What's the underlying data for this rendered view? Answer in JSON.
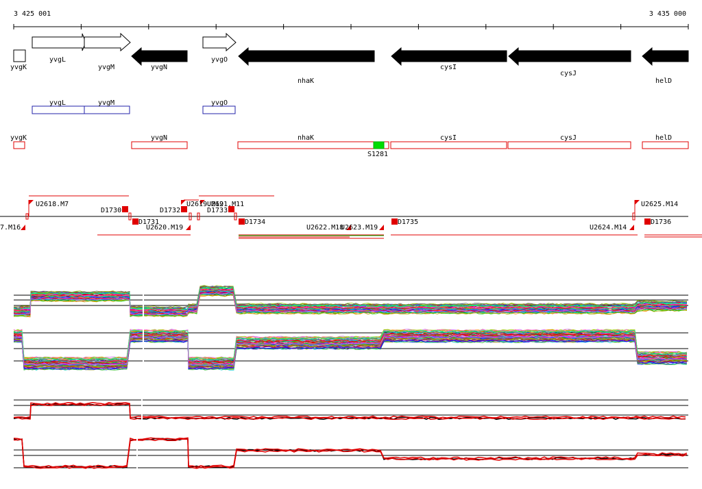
{
  "ruler": {
    "start_label": "3 425 001",
    "end_label": "3 435 000"
  },
  "genes": [
    {
      "name": "yvgK",
      "strand": "none"
    },
    {
      "name": "yvgL",
      "strand": "+"
    },
    {
      "name": "yvgM",
      "strand": "+"
    },
    {
      "name": "yvgN",
      "strand": "-"
    },
    {
      "name": "yvgO",
      "strand": "+"
    },
    {
      "name": "nhaK",
      "strand": "-"
    },
    {
      "name": "cysI",
      "strand": "-"
    },
    {
      "name": "cysJ",
      "strand": "-"
    },
    {
      "name": "helD",
      "strand": "-"
    }
  ],
  "plus_operon_genes": [
    "yvgL",
    "yvgM",
    "yvgO"
  ],
  "minus_operon_genes": [
    "yvgK",
    "yvgN",
    "nhaK",
    "cysI",
    "cysJ",
    "helD"
  ],
  "sites": [
    {
      "name": "S1281",
      "color": "#00dd00"
    }
  ],
  "tu_labels": {
    "u2618": "U2618.M7",
    "d1730": "D1730",
    "d1731": "D1731",
    "d1732": "D1732",
    "u2620": "U2620.M19",
    "u2619": "U2619.M19",
    "u2621": "U2621.M11",
    "d1733": "D1733",
    "d1734": "D1734",
    "u2622": "U2622.M18",
    "u2623": "U2623.M19",
    "d1735": "D1735",
    "u2624": "U2624.M14",
    "u2625": "U2625.M14",
    "d1736": "D1736",
    "m16": "7.M16"
  },
  "colors": {
    "feature": "#e00000",
    "operon_plus": "#2222aa",
    "site": "#00dd00",
    "arrow": "#000000"
  },
  "expression_tracks": [
    {
      "name": "tiling-plus-strand",
      "traces": 60
    },
    {
      "name": "tiling-minus-strand",
      "traces": 60
    },
    {
      "name": "summary-plus-strand",
      "traces": 3
    },
    {
      "name": "summary-minus-strand",
      "traces": 3
    }
  ]
}
